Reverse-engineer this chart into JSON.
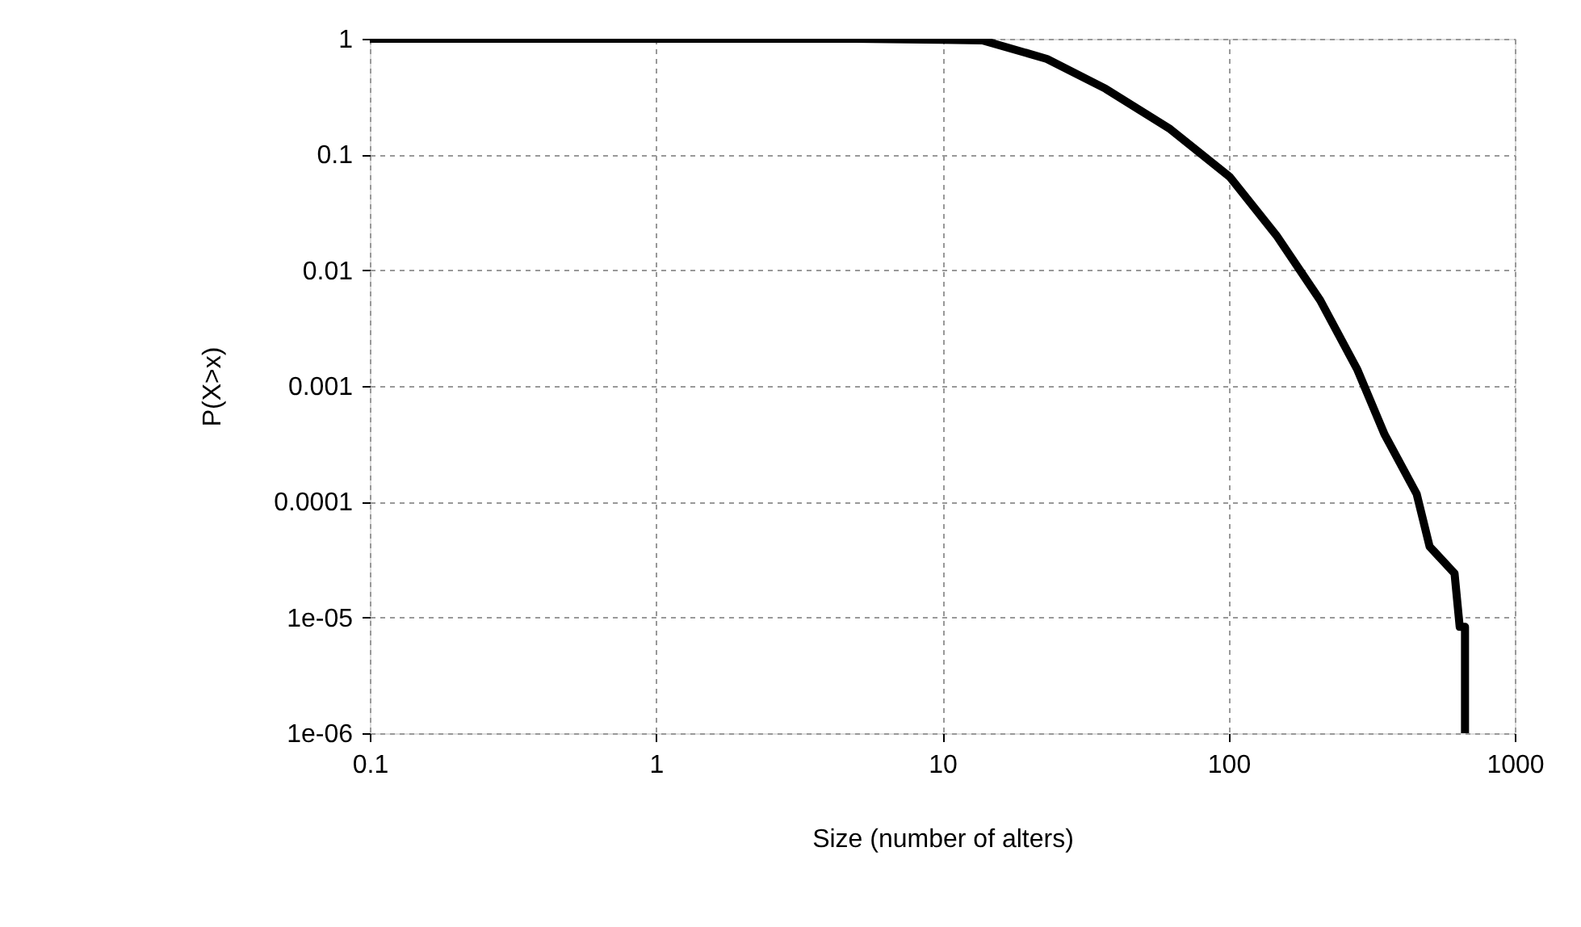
{
  "chart_data": {
    "type": "line",
    "xlabel": "Size (number of alters)",
    "ylabel": "P(X>x)",
    "log": "xy",
    "grid": true,
    "line_style": "solid",
    "xlim": [
      0.1,
      1000
    ],
    "ylim": [
      1e-06,
      1
    ],
    "xticks": [
      0.1,
      1,
      10,
      100,
      1000
    ],
    "yticks": [
      {
        "value": 1e-06,
        "label": "1e-06"
      },
      {
        "value": 1e-05,
        "label": "1e-05"
      },
      0.0001,
      0.001,
      0.01,
      0.1,
      1
    ],
    "series": [
      {
        "color": "#000000",
        "x": [
          0.1,
          1,
          5,
          10,
          13.8,
          23.2,
          37.2,
          62.5,
          101,
          147,
          209,
          282,
          351,
          454,
          504,
          616,
          642,
          670,
          670
        ],
        "values": [
          1,
          1,
          1,
          0.98,
          0.97,
          0.67,
          0.37,
          0.166,
          0.064,
          0.02,
          0.0055,
          0.00138,
          0.00038,
          0.000117,
          4.1e-05,
          2.4e-05,
          8.3e-06,
          8.3e-06,
          1e-06
        ]
      }
    ]
  }
}
